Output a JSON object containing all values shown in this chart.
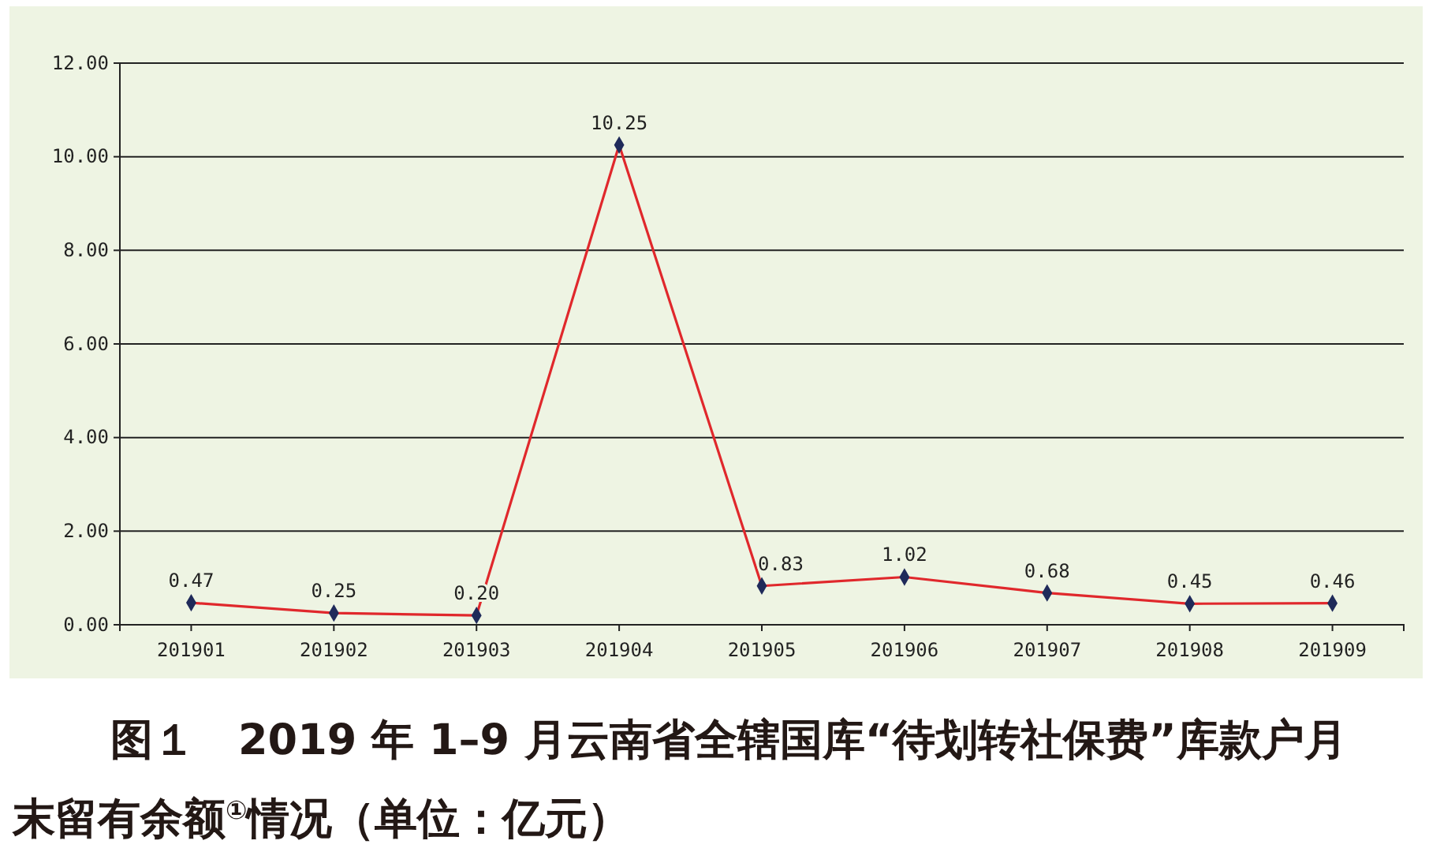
{
  "chart_data": {
    "type": "line",
    "title": "图１　2019 年 1–9 月云南省全辖国库“待划转社保费”库款户月末留有余额$^{①}$情况（单位：亿元）",
    "categories": [
      "201901",
      "201902",
      "201903",
      "201904",
      "201905",
      "201906",
      "201907",
      "201908",
      "201909"
    ],
    "series": [
      {
        "color": "#e0282c",
        "values": [
          0.47,
          0.25,
          0.2,
          10.25,
          0.83,
          1.02,
          0.68,
          0.45,
          0.46
        ],
        "value_labels": [
          "0.47",
          "0.25",
          "0.20",
          "10.25",
          "0.83",
          "1.02",
          "0.68",
          "0.45",
          "0.46"
        ]
      }
    ],
    "ylim": [
      0,
      12
    ],
    "yticks": [
      {
        "value": 0,
        "label": "0.00"
      },
      {
        "value": 2,
        "label": "2.00"
      },
      {
        "value": 4,
        "label": "4.00"
      },
      {
        "value": 6,
        "label": "6.00"
      },
      {
        "value": 8,
        "label": "8.00"
      },
      {
        "value": 10,
        "label": "10.00"
      },
      {
        "value": 12,
        "label": "12.00"
      }
    ],
    "grid": "y",
    "marker": "diamond",
    "line_style": "solid"
  }
}
